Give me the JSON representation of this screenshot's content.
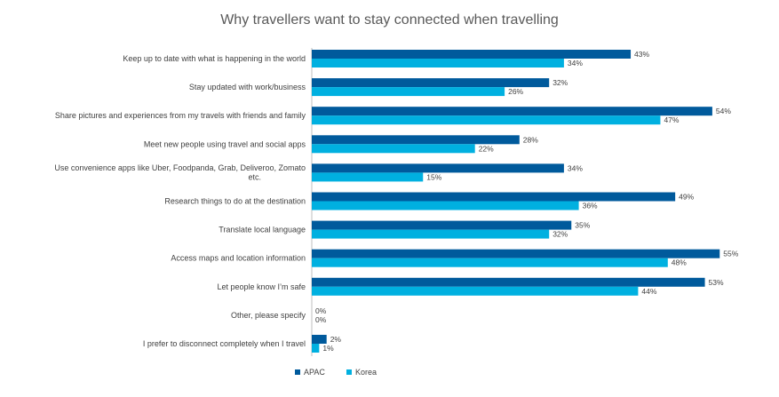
{
  "chart_data": {
    "type": "bar",
    "orientation": "horizontal",
    "title": "Why travellers want to stay connected when travelling",
    "categories": [
      [
        "Keep up to date with what is happening in the world"
      ],
      [
        "Stay updated with work/business"
      ],
      [
        "Share pictures and experiences from my travels with friends and family"
      ],
      [
        "Meet new people using travel and social apps"
      ],
      [
        "Use convenience apps like Uber, Foodpanda, Grab, Deliveroo, Zomato",
        "etc."
      ],
      [
        "Research things to do at the destination"
      ],
      [
        "Translate local language"
      ],
      [
        "Access maps and location information"
      ],
      [
        "Let people know I’m safe"
      ],
      [
        "Other, please specify"
      ],
      [
        "I prefer to disconnect completely when I travel"
      ]
    ],
    "series": [
      {
        "name": "APAC",
        "color": "#005A9C",
        "values": [
          43,
          32,
          54,
          28,
          34,
          49,
          35,
          55,
          53,
          0,
          2
        ],
        "labels": [
          "43%",
          "32%",
          "54%",
          "28%",
          "34%",
          "49%",
          "35%",
          "55%",
          "53%",
          "0%",
          "2%"
        ]
      },
      {
        "name": "Korea",
        "color": "#00B0E0",
        "values": [
          34,
          26,
          47,
          22,
          15,
          36,
          32,
          48,
          44,
          0,
          1
        ],
        "labels": [
          "34%",
          "26%",
          "47%",
          "22%",
          "15%",
          "36%",
          "32%",
          "48%",
          "44%",
          "0%",
          "1%"
        ]
      }
    ],
    "xlim": [
      0,
      56
    ],
    "grid": false,
    "legend": "bottom-center",
    "axis_color": "#bfbfbf"
  }
}
